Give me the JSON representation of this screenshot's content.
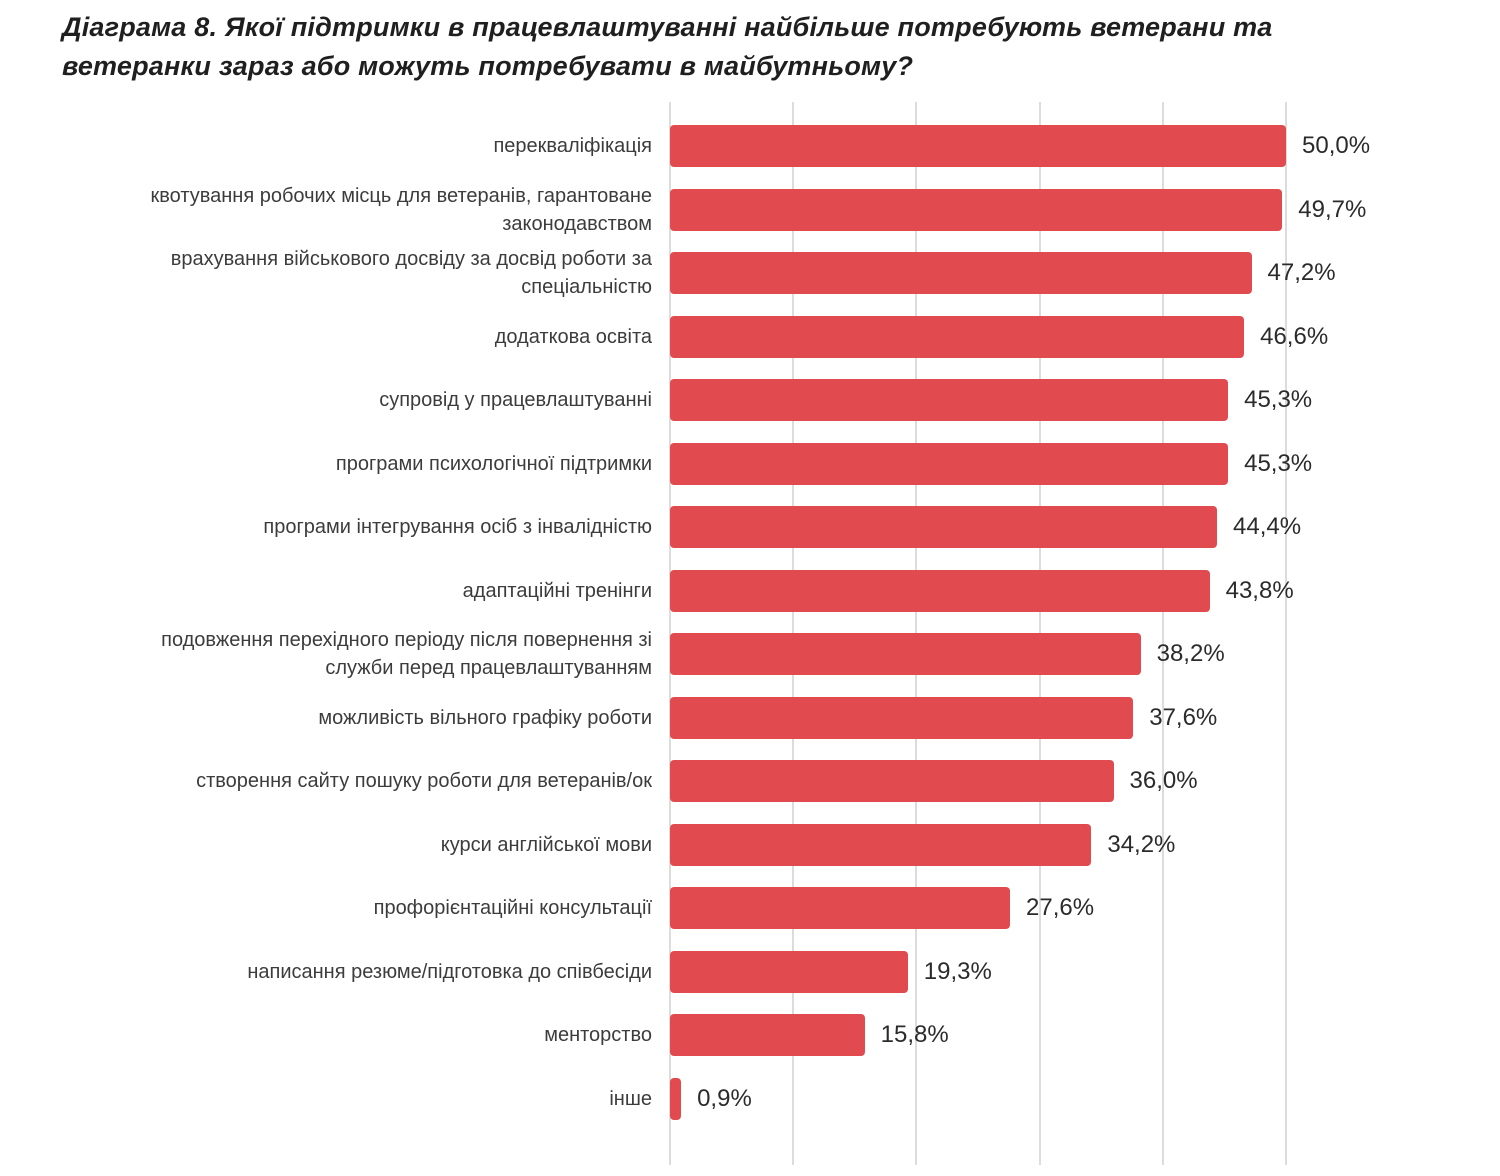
{
  "title": "Діаграма 8. Якої підтримки в працевлаштуванні найбільше потребують ветерани та\nветеранки зараз або можуть потребувати в майбутньому?",
  "chart_data": {
    "type": "bar",
    "orientation": "horizontal",
    "title": "Діаграма 8. Якої підтримки в працевлаштуванні найбільше потребують ветерани та ветеранки зараз або можуть потребувати в майбутньому?",
    "xlabel": "",
    "ylabel": "",
    "xlim": [
      0,
      50
    ],
    "unit": "%",
    "grid": true,
    "gridlines_percent": [
      0,
      10,
      20,
      30,
      40,
      50
    ],
    "bar_color": "#e14b4f",
    "gridline_color": "#dcdcdc",
    "categories": [
      "перекваліфікація",
      "квотування робочих місць для ветеранів, гарантоване\nзаконодавством",
      "врахування військового досвіду за досвід роботи за\nспеціальністю",
      "додаткова освіта",
      "супровід у працевлаштуванні",
      "програми психологічної підтримки",
      "програми інтегрування осіб з інвалідністю",
      "адаптаційні тренінги",
      "подовження перехідного періоду після повернення зі\nслужби перед працевлаштуванням",
      "можливість вільного графіку роботи",
      "створення сайту пошуку роботи для ветеранів/ок",
      "курси англійської мови",
      "профорієнтаційні консультації",
      "написання резюме/підготовка до співбесіди",
      "менторство",
      "інше"
    ],
    "values": [
      50.0,
      49.7,
      47.2,
      46.6,
      45.3,
      45.3,
      44.4,
      43.8,
      38.2,
      37.6,
      36.0,
      34.2,
      27.6,
      19.3,
      15.8,
      0.9
    ],
    "value_labels": [
      "50,0%",
      "49,7%",
      "47,2%",
      "46,6%",
      "45,3%",
      "45,3%",
      "44,4%",
      "43,8%",
      "38,2%",
      "37,6%",
      "36,0%",
      "34,2%",
      "27,6%",
      "19,3%",
      "15,8%",
      "0,9%"
    ],
    "legend": null
  }
}
